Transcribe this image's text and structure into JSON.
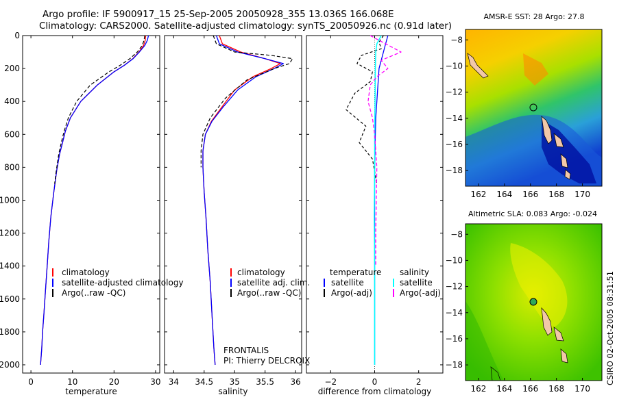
{
  "header": {
    "line1": "Argo profile: IF 5900917_15 25-Sep-2005 20050928_355 13.036S 166.068E",
    "line2": "Climatology: CARS2000. Satellite-adjusted climatology: synTS_20050926.nc (0.91d later)"
  },
  "frontalis": {
    "line1": "FRONTALIS",
    "line2": "PI: Thierry DELCROIX"
  },
  "side_label": "CSIRO 02-Oct-2005 08:31:51",
  "colors": {
    "red": "#ff0000",
    "blue": "#0000ff",
    "black": "#000000",
    "cyan": "#00ffff",
    "magenta": "#ff00ff"
  },
  "chart_data": [
    {
      "type": "line",
      "xlabel": "temperature",
      "ylabel": "",
      "xlim": [
        -2,
        31
      ],
      "ylim": [
        2050,
        0
      ],
      "y_reversed": true,
      "xticks": [
        0,
        10,
        20,
        30
      ],
      "yticks": [
        0,
        200,
        400,
        600,
        800,
        1000,
        1200,
        1400,
        1600,
        1800,
        2000
      ],
      "legend": [
        "climatology",
        "satellite-adjusted climatology",
        "Argo(..raw -QC)"
      ],
      "series": [
        {
          "name": "climatology",
          "color": "#ff0000",
          "dash": "",
          "width": 1.3,
          "x": [
            27.6,
            27.5,
            27.1,
            26.0,
            24.5,
            22.5,
            20.0,
            16.0,
            12.0,
            9.5,
            8.3,
            7.6,
            6.9,
            6.2,
            5.5,
            4.8,
            4.3,
            3.9,
            3.5,
            3.1,
            2.8,
            2.6,
            2.3
          ],
          "y": [
            0,
            30,
            60,
            100,
            140,
            180,
            220,
            300,
            400,
            500,
            580,
            650,
            720,
            820,
            950,
            1100,
            1250,
            1400,
            1550,
            1700,
            1800,
            1900,
            2000
          ]
        },
        {
          "name": "satellite-adjusted climatology",
          "color": "#0000ff",
          "dash": "",
          "width": 1.3,
          "x": [
            28.3,
            28.0,
            27.4,
            26.1,
            24.6,
            22.5,
            20.0,
            16.0,
            12.0,
            9.5,
            8.3,
            7.6,
            6.9,
            6.2,
            5.5,
            4.8,
            4.3,
            3.9,
            3.5,
            3.1,
            2.8,
            2.6,
            2.3
          ],
          "y": [
            0,
            30,
            60,
            100,
            140,
            180,
            220,
            300,
            400,
            500,
            580,
            650,
            720,
            820,
            950,
            1100,
            1250,
            1400,
            1550,
            1700,
            1800,
            1900,
            2000
          ]
        },
        {
          "name": "Argo(..raw -QC)",
          "color": "#000000",
          "dash": "5,3",
          "width": 1.2,
          "x": [
            27.4,
            27.2,
            26.8,
            25.6,
            23.8,
            21.5,
            18.8,
            14.3,
            11.0,
            9.0,
            8.0,
            7.3,
            6.7,
            6.1,
            5.7
          ],
          "y": [
            0,
            30,
            60,
            100,
            140,
            180,
            220,
            300,
            400,
            500,
            580,
            650,
            720,
            820,
            900
          ]
        }
      ]
    },
    {
      "type": "line",
      "xlabel": "salinity",
      "ylabel": "",
      "xlim": [
        33.85,
        36.1
      ],
      "ylim": [
        2050,
        0
      ],
      "y_reversed": true,
      "xticks": [
        34,
        34.5,
        35,
        35.5,
        36
      ],
      "yticks": [
        0,
        200,
        400,
        600,
        800,
        1000,
        1200,
        1400,
        1600,
        1800,
        2000
      ],
      "legend": [
        "climatology",
        "satellite adj. clim.",
        "Argo(..raw -QC)"
      ],
      "series": [
        {
          "name": "climatology",
          "color": "#ff0000",
          "dash": "",
          "width": 1.3,
          "x": [
            34.75,
            34.8,
            35.1,
            35.5,
            35.75,
            35.6,
            35.3,
            35.0,
            34.8,
            34.62,
            34.52,
            34.48,
            34.48,
            34.5,
            34.53,
            34.56,
            34.6,
            34.63,
            34.66,
            34.68
          ],
          "y": [
            0,
            50,
            100,
            140,
            170,
            200,
            250,
            330,
            430,
            520,
            600,
            700,
            800,
            950,
            1100,
            1300,
            1500,
            1700,
            1900,
            2000
          ]
        },
        {
          "name": "satellite adj. clim.",
          "color": "#0000ff",
          "dash": "",
          "width": 1.3,
          "x": [
            34.7,
            34.75,
            35.05,
            35.5,
            35.8,
            35.65,
            35.35,
            35.05,
            34.82,
            34.63,
            34.52,
            34.48,
            34.48,
            34.5,
            34.53,
            34.56,
            34.6,
            34.63,
            34.66,
            34.68
          ],
          "y": [
            0,
            50,
            100,
            140,
            170,
            200,
            250,
            330,
            430,
            520,
            600,
            700,
            800,
            950,
            1100,
            1300,
            1500,
            1700,
            1900,
            2000
          ]
        },
        {
          "name": "Argo(..raw -QC)",
          "color": "#000000",
          "dash": "5,3",
          "width": 1.2,
          "x": [
            34.65,
            34.7,
            35.0,
            35.6,
            35.95,
            35.9,
            35.65,
            35.2,
            34.85,
            34.6,
            34.48,
            34.45,
            34.45
          ],
          "y": [
            0,
            50,
            100,
            120,
            140,
            170,
            200,
            270,
            380,
            500,
            600,
            700,
            800
          ]
        }
      ]
    },
    {
      "type": "line",
      "xlabel": "difference from climatology",
      "ylabel": "",
      "xlim": [
        -3.1,
        3.1
      ],
      "ylim": [
        2050,
        0
      ],
      "y_reversed": true,
      "xticks": [
        -2,
        0,
        2
      ],
      "yticks": [
        0,
        200,
        400,
        600,
        800,
        1000,
        1200,
        1400,
        1600,
        1800,
        2000
      ],
      "legend_title": [
        "temperature",
        "salinity"
      ],
      "legend": [
        "satellite",
        "Argo(-adj)",
        "satellite",
        "Argo(-adj)"
      ],
      "series": [
        {
          "name": "satellite",
          "group": "temperature",
          "color": "#0000ff",
          "dash": "",
          "width": 1.3,
          "x": [
            0.6,
            0.5,
            0.4,
            0.3,
            0.2,
            0.15,
            0.1,
            0.05,
            0.03,
            0.0,
            0.0,
            0.0,
            0.0,
            0.0
          ],
          "y": [
            0,
            50,
            100,
            150,
            200,
            300,
            400,
            500,
            600,
            800,
            1000,
            1400,
            1800,
            2000
          ]
        },
        {
          "name": "Argo(-adj)",
          "group": "temperature",
          "color": "#000000",
          "dash": "4,3",
          "width": 1.2,
          "x": [
            0.4,
            0.2,
            0.3,
            -0.6,
            -0.8,
            -0.1,
            -0.2,
            -0.9,
            -1.3,
            -0.4,
            -0.7,
            -0.1,
            0.1
          ],
          "y": [
            0,
            40,
            80,
            120,
            170,
            220,
            280,
            350,
            450,
            550,
            650,
            750,
            900
          ]
        },
        {
          "name": "satellite",
          "group": "salinity",
          "color": "#00ffff",
          "dash": "",
          "width": 1.5,
          "x": [
            0.3,
            0.1,
            0.05,
            0.03,
            0.02,
            0.0,
            0.0,
            -0.02,
            0.0,
            0.0,
            0.0
          ],
          "y": [
            0,
            50,
            100,
            200,
            400,
            600,
            800,
            1100,
            1400,
            1800,
            2000
          ]
        },
        {
          "name": "Argo(-adj)",
          "group": "salinity",
          "color": "#ff00ff",
          "dash": "5,3",
          "width": 1.3,
          "x": [
            -0.2,
            0.5,
            1.2,
            0.3,
            0.6,
            0.1,
            -0.2,
            -0.3,
            -0.1,
            0.0,
            0.05,
            0.1,
            0.05,
            0.05
          ],
          "y": [
            0,
            50,
            100,
            150,
            200,
            250,
            300,
            400,
            500,
            600,
            700,
            800,
            1200,
            1400
          ]
        }
      ]
    },
    {
      "type": "heatmap",
      "title": "AMSR-E SST: 28 Argo: 27.8",
      "xlim": [
        161,
        171.5
      ],
      "ylim": [
        -19.2,
        -7.2
      ],
      "xticks": [
        162,
        164,
        166,
        168,
        170
      ],
      "yticks": [
        -8,
        -10,
        -12,
        -14,
        -16,
        -18
      ],
      "marker": {
        "lon": 166.068,
        "lat": -13.036
      }
    },
    {
      "type": "heatmap",
      "title": "Altimetric SLA: 0.083 Argo: -0.024",
      "xlim": [
        161,
        171.5
      ],
      "ylim": [
        -19.2,
        -7.2
      ],
      "xticks": [
        162,
        164,
        166,
        168,
        170
      ],
      "yticks": [
        -8,
        -10,
        -12,
        -14,
        -16,
        -18
      ],
      "marker": {
        "lon": 166.068,
        "lat": -13.036
      }
    }
  ]
}
